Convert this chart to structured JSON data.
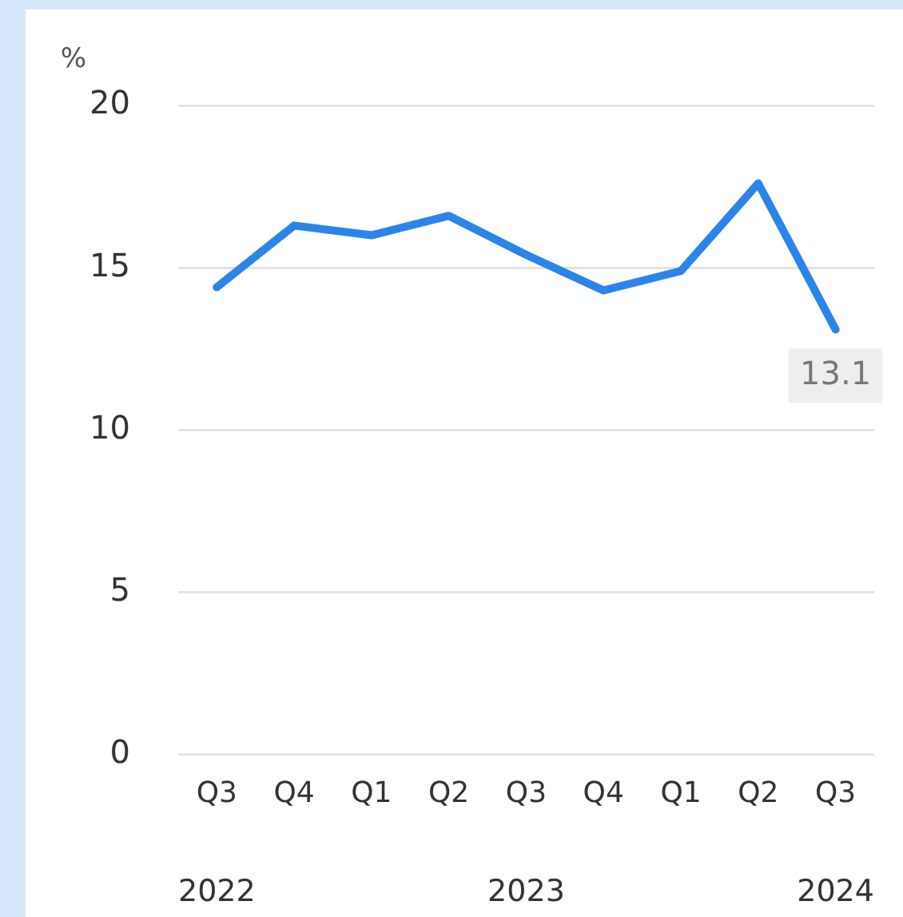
{
  "chart_data": {
    "type": "line",
    "ylabel": "%",
    "categories": [
      "Q3",
      "Q4",
      "Q1",
      "Q2",
      "Q3",
      "Q4",
      "Q1",
      "Q2",
      "Q3"
    ],
    "series": [
      {
        "color": "#2b84ea",
        "values": [
          14.4,
          16.3,
          16.0,
          16.6,
          15.4,
          14.3,
          14.9,
          17.6,
          13.1
        ],
        "value_labels": [
          null,
          null,
          null,
          null,
          null,
          null,
          null,
          null,
          "13.1"
        ]
      }
    ],
    "annotations": [
      "2022",
      "2023",
      "2024"
    ],
    "ylim": [
      0,
      20
    ],
    "yticks": [
      0,
      5,
      10,
      15,
      20
    ],
    "grid": "y",
    "legend": false,
    "marker": "none",
    "line_style": "solid"
  }
}
